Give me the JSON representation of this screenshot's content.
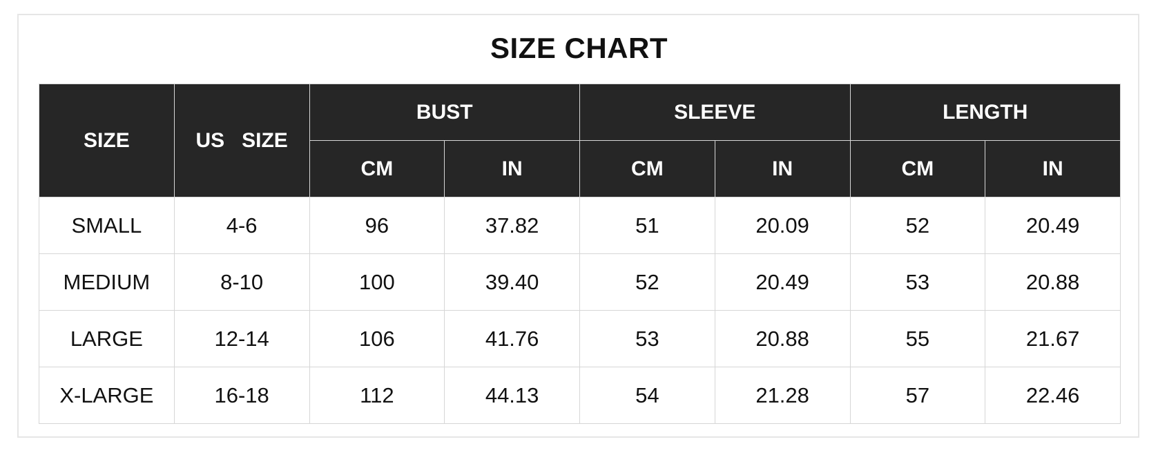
{
  "title": "SIZE CHART",
  "headers": {
    "size": "SIZE",
    "us_size": "US   SIZE",
    "groups": [
      "BUST",
      "SLEEVE",
      "LENGTH"
    ],
    "units": [
      "CM",
      "IN",
      "CM",
      "IN",
      "CM",
      "IN"
    ]
  },
  "rows": [
    [
      "SMALL",
      "4-6",
      "96",
      "37.82",
      "51",
      "20.09",
      "52",
      "20.49"
    ],
    [
      "MEDIUM",
      "8-10",
      "100",
      "39.40",
      "52",
      "20.49",
      "53",
      "20.88"
    ],
    [
      "LARGE",
      "12-14",
      "106",
      "41.76",
      "53",
      "20.88",
      "55",
      "21.67"
    ],
    [
      "X-LARGE",
      "16-18",
      "112",
      "44.13",
      "54",
      "21.28",
      "57",
      "22.46"
    ]
  ],
  "colors": {
    "header_bg": "#262626",
    "header_text": "#ffffff",
    "grid": "#d6d6d6"
  }
}
